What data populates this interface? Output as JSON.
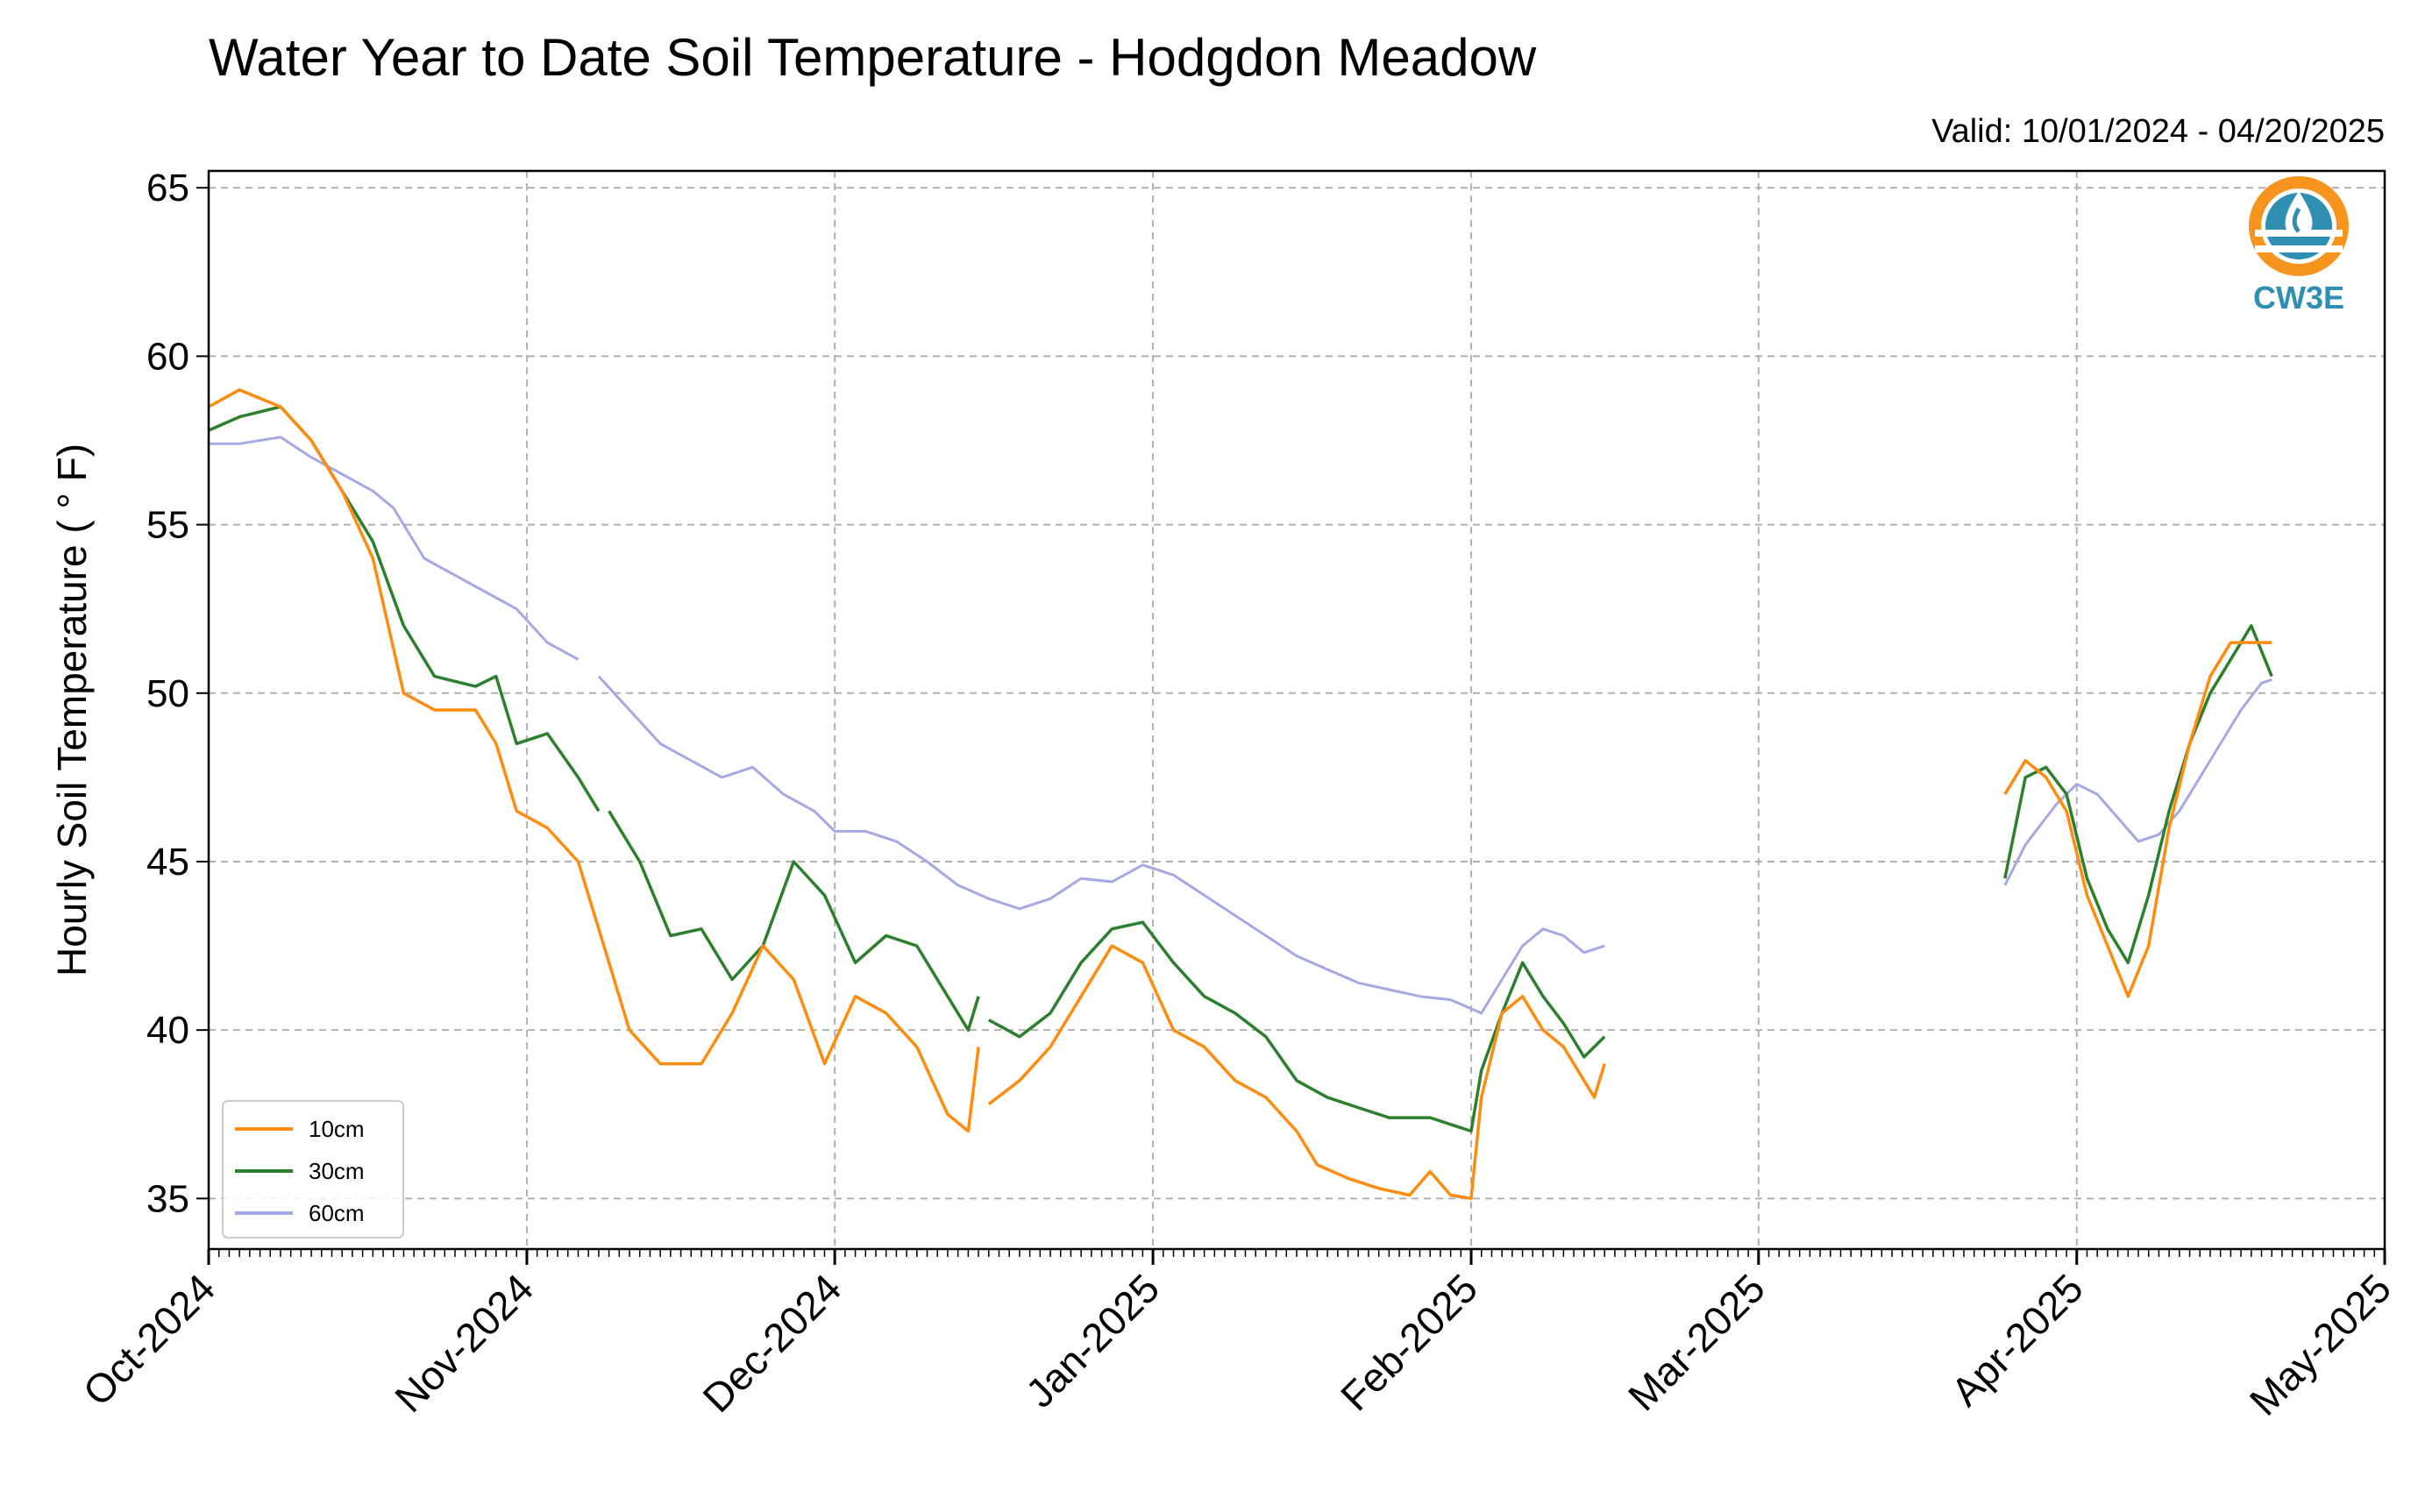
{
  "chart_data": {
    "type": "line",
    "title": "Water Year to Date Soil Temperature - Hodgdon Meadow",
    "valid_label": "Valid: 10/01/2024 - 04/20/2025",
    "ylabel": "Hourly Soil Temperature ( ° F)",
    "xlabel": "",
    "ylim": [
      33.5,
      65.5
    ],
    "yticks": [
      35,
      40,
      45,
      50,
      55,
      60,
      65
    ],
    "xlim": [
      "2024-10-01",
      "2025-05-01"
    ],
    "xticks": [
      {
        "date": "2024-10-01",
        "label": "Oct-2024"
      },
      {
        "date": "2024-11-01",
        "label": "Nov-2024"
      },
      {
        "date": "2024-12-01",
        "label": "Dec-2024"
      },
      {
        "date": "2025-01-01",
        "label": "Jan-2025"
      },
      {
        "date": "2025-02-01",
        "label": "Feb-2025"
      },
      {
        "date": "2025-03-01",
        "label": "Mar-2025"
      },
      {
        "date": "2025-04-01",
        "label": "Apr-2025"
      },
      {
        "date": "2025-05-01",
        "label": "May-2025"
      }
    ],
    "grid": true,
    "legend_position": "bottom-left",
    "logo_text": "CW3E",
    "series": [
      {
        "name": "10cm",
        "color": "#ff8c0f",
        "segments": [
          [
            [
              "2024-10-01",
              58.5
            ],
            [
              "2024-10-04",
              59.0
            ],
            [
              "2024-10-08",
              58.5
            ],
            [
              "2024-10-11",
              57.5
            ],
            [
              "2024-10-14",
              56.0
            ],
            [
              "2024-10-17",
              54.0
            ],
            [
              "2024-10-20",
              50.0
            ],
            [
              "2024-10-23",
              49.5
            ],
            [
              "2024-10-27",
              49.5
            ],
            [
              "2024-10-29",
              48.5
            ],
            [
              "2024-10-31",
              46.5
            ],
            [
              "2024-11-03",
              46.0
            ],
            [
              "2024-11-06",
              45.0
            ],
            [
              "2024-11-08",
              43.0
            ],
            [
              "2024-11-11",
              40.0
            ],
            [
              "2024-11-14",
              39.0
            ],
            [
              "2024-11-18",
              39.0
            ],
            [
              "2024-11-21",
              40.5
            ],
            [
              "2024-11-24",
              42.5
            ],
            [
              "2024-11-27",
              41.5
            ],
            [
              "2024-11-30",
              39.0
            ],
            [
              "2024-12-03",
              41.0
            ],
            [
              "2024-12-06",
              40.5
            ],
            [
              "2024-12-09",
              39.5
            ],
            [
              "2024-12-12",
              37.5
            ],
            [
              "2024-12-14",
              37.0
            ],
            [
              "2024-12-15",
              39.5
            ]
          ],
          [
            [
              "2024-12-16",
              37.8
            ],
            [
              "2024-12-19",
              38.5
            ],
            [
              "2024-12-22",
              39.5
            ],
            [
              "2024-12-25",
              41.0
            ],
            [
              "2024-12-28",
              42.5
            ],
            [
              "2024-12-31",
              42.0
            ],
            [
              "2025-01-03",
              40.0
            ],
            [
              "2025-01-06",
              39.5
            ],
            [
              "2025-01-09",
              38.5
            ],
            [
              "2025-01-12",
              38.0
            ],
            [
              "2025-01-15",
              37.0
            ],
            [
              "2025-01-17",
              36.0
            ],
            [
              "2025-01-20",
              35.6
            ],
            [
              "2025-01-23",
              35.3
            ],
            [
              "2025-01-26",
              35.1
            ],
            [
              "2025-01-28",
              35.8
            ],
            [
              "2025-01-30",
              35.1
            ],
            [
              "2025-02-01",
              35.0
            ],
            [
              "2025-02-02",
              38.0
            ],
            [
              "2025-02-04",
              40.5
            ],
            [
              "2025-02-06",
              41.0
            ],
            [
              "2025-02-08",
              40.0
            ],
            [
              "2025-02-10",
              39.5
            ],
            [
              "2025-02-12",
              38.5
            ],
            [
              "2025-02-13",
              38.0
            ],
            [
              "2025-02-14",
              39.0
            ]
          ],
          [
            [
              "2025-03-25",
              47.0
            ],
            [
              "2025-03-27",
              48.0
            ],
            [
              "2025-03-29",
              47.5
            ],
            [
              "2025-03-31",
              46.5
            ],
            [
              "2025-04-02",
              44.0
            ],
            [
              "2025-04-04",
              42.5
            ],
            [
              "2025-04-06",
              41.0
            ],
            [
              "2025-04-08",
              42.5
            ],
            [
              "2025-04-10",
              46.0
            ],
            [
              "2025-04-12",
              48.5
            ],
            [
              "2025-04-14",
              50.5
            ],
            [
              "2025-04-16",
              51.5
            ],
            [
              "2025-04-18",
              51.5
            ],
            [
              "2025-04-20",
              51.5
            ]
          ]
        ]
      },
      {
        "name": "30cm",
        "color": "#2c7f2c",
        "segments": [
          [
            [
              "2024-10-01",
              57.8
            ],
            [
              "2024-10-04",
              58.2
            ],
            [
              "2024-10-08",
              58.5
            ],
            [
              "2024-10-11",
              57.5
            ],
            [
              "2024-10-14",
              56.0
            ],
            [
              "2024-10-17",
              54.5
            ],
            [
              "2024-10-20",
              52.0
            ],
            [
              "2024-10-23",
              50.5
            ],
            [
              "2024-10-27",
              50.2
            ],
            [
              "2024-10-29",
              50.5
            ],
            [
              "2024-10-31",
              48.5
            ],
            [
              "2024-11-03",
              48.8
            ],
            [
              "2024-11-06",
              47.5
            ],
            [
              "2024-11-08",
              46.5
            ]
          ],
          [
            [
              "2024-11-09",
              46.5
            ],
            [
              "2024-11-12",
              45.0
            ],
            [
              "2024-11-15",
              42.8
            ],
            [
              "2024-11-18",
              43.0
            ],
            [
              "2024-11-21",
              41.5
            ],
            [
              "2024-11-24",
              42.5
            ],
            [
              "2024-11-27",
              45.0
            ],
            [
              "2024-11-30",
              44.0
            ],
            [
              "2024-12-03",
              42.0
            ],
            [
              "2024-12-06",
              42.8
            ],
            [
              "2024-12-09",
              42.5
            ],
            [
              "2024-12-12",
              41.0
            ],
            [
              "2024-12-14",
              40.0
            ],
            [
              "2024-12-15",
              41.0
            ]
          ],
          [
            [
              "2024-12-16",
              40.3
            ],
            [
              "2024-12-19",
              39.8
            ],
            [
              "2024-12-22",
              40.5
            ],
            [
              "2024-12-25",
              42.0
            ],
            [
              "2024-12-28",
              43.0
            ],
            [
              "2024-12-31",
              43.2
            ],
            [
              "2025-01-03",
              42.0
            ],
            [
              "2025-01-06",
              41.0
            ],
            [
              "2025-01-09",
              40.5
            ],
            [
              "2025-01-12",
              39.8
            ],
            [
              "2025-01-15",
              38.5
            ],
            [
              "2025-01-18",
              38.0
            ],
            [
              "2025-01-21",
              37.7
            ],
            [
              "2025-01-24",
              37.4
            ],
            [
              "2025-01-28",
              37.4
            ],
            [
              "2025-01-30",
              37.2
            ],
            [
              "2025-02-01",
              37.0
            ],
            [
              "2025-02-02",
              38.8
            ],
            [
              "2025-02-04",
              40.5
            ],
            [
              "2025-02-06",
              42.0
            ],
            [
              "2025-02-08",
              41.0
            ],
            [
              "2025-02-10",
              40.2
            ],
            [
              "2025-02-12",
              39.2
            ],
            [
              "2025-02-14",
              39.8
            ]
          ],
          [
            [
              "2025-03-25",
              44.5
            ],
            [
              "2025-03-27",
              47.5
            ],
            [
              "2025-03-29",
              47.8
            ],
            [
              "2025-03-31",
              47.0
            ],
            [
              "2025-04-02",
              44.5
            ],
            [
              "2025-04-04",
              43.0
            ],
            [
              "2025-04-06",
              42.0
            ],
            [
              "2025-04-08",
              44.0
            ],
            [
              "2025-04-10",
              46.5
            ],
            [
              "2025-04-12",
              48.5
            ],
            [
              "2025-04-14",
              50.0
            ],
            [
              "2025-04-16",
              51.0
            ],
            [
              "2025-04-18",
              52.0
            ],
            [
              "2025-04-20",
              50.5
            ]
          ]
        ]
      },
      {
        "name": "60cm",
        "color": "#a5a8e3",
        "segments": [
          [
            [
              "2024-10-01",
              57.4
            ],
            [
              "2024-10-04",
              57.4
            ],
            [
              "2024-10-08",
              57.6
            ],
            [
              "2024-10-11",
              57.0
            ],
            [
              "2024-10-14",
              56.5
            ],
            [
              "2024-10-17",
              56.0
            ],
            [
              "2024-10-19",
              55.5
            ],
            [
              "2024-10-22",
              54.0
            ],
            [
              "2024-10-25",
              53.5
            ],
            [
              "2024-10-28",
              53.0
            ],
            [
              "2024-10-31",
              52.5
            ],
            [
              "2024-11-03",
              51.5
            ],
            [
              "2024-11-06",
              51.0
            ]
          ],
          [
            [
              "2024-11-08",
              50.5
            ],
            [
              "2024-11-11",
              49.5
            ],
            [
              "2024-11-14",
              48.5
            ],
            [
              "2024-11-17",
              48.0
            ],
            [
              "2024-11-20",
              47.5
            ],
            [
              "2024-11-23",
              47.8
            ],
            [
              "2024-11-26",
              47.0
            ],
            [
              "2024-11-29",
              46.5
            ],
            [
              "2024-12-01",
              45.9
            ],
            [
              "2024-12-04",
              45.9
            ],
            [
              "2024-12-07",
              45.6
            ],
            [
              "2024-12-10",
              45.0
            ],
            [
              "2024-12-13",
              44.3
            ],
            [
              "2024-12-16",
              43.9
            ],
            [
              "2024-12-19",
              43.6
            ],
            [
              "2024-12-22",
              43.9
            ],
            [
              "2024-12-25",
              44.5
            ],
            [
              "2024-12-28",
              44.4
            ],
            [
              "2024-12-31",
              44.9
            ],
            [
              "2025-01-03",
              44.6
            ],
            [
              "2025-01-06",
              44.0
            ],
            [
              "2025-01-09",
              43.4
            ],
            [
              "2025-01-12",
              42.8
            ],
            [
              "2025-01-15",
              42.2
            ],
            [
              "2025-01-18",
              41.8
            ],
            [
              "2025-01-21",
              41.4
            ],
            [
              "2025-01-24",
              41.2
            ],
            [
              "2025-01-27",
              41.0
            ],
            [
              "2025-01-30",
              40.9
            ],
            [
              "2025-02-02",
              40.5
            ],
            [
              "2025-02-04",
              41.5
            ],
            [
              "2025-02-06",
              42.5
            ],
            [
              "2025-02-08",
              43.0
            ],
            [
              "2025-02-10",
              42.8
            ],
            [
              "2025-02-12",
              42.3
            ],
            [
              "2025-02-14",
              42.5
            ]
          ],
          [
            [
              "2025-03-25",
              44.3
            ],
            [
              "2025-03-27",
              45.5
            ],
            [
              "2025-03-30",
              46.7
            ],
            [
              "2025-04-01",
              47.3
            ],
            [
              "2025-04-03",
              47.0
            ],
            [
              "2025-04-05",
              46.3
            ],
            [
              "2025-04-07",
              45.6
            ],
            [
              "2025-04-09",
              45.8
            ],
            [
              "2025-04-11",
              46.5
            ],
            [
              "2025-04-13",
              47.5
            ],
            [
              "2025-04-15",
              48.5
            ],
            [
              "2025-04-17",
              49.5
            ],
            [
              "2025-04-19",
              50.3
            ],
            [
              "2025-04-20",
              50.4
            ]
          ]
        ]
      }
    ]
  }
}
